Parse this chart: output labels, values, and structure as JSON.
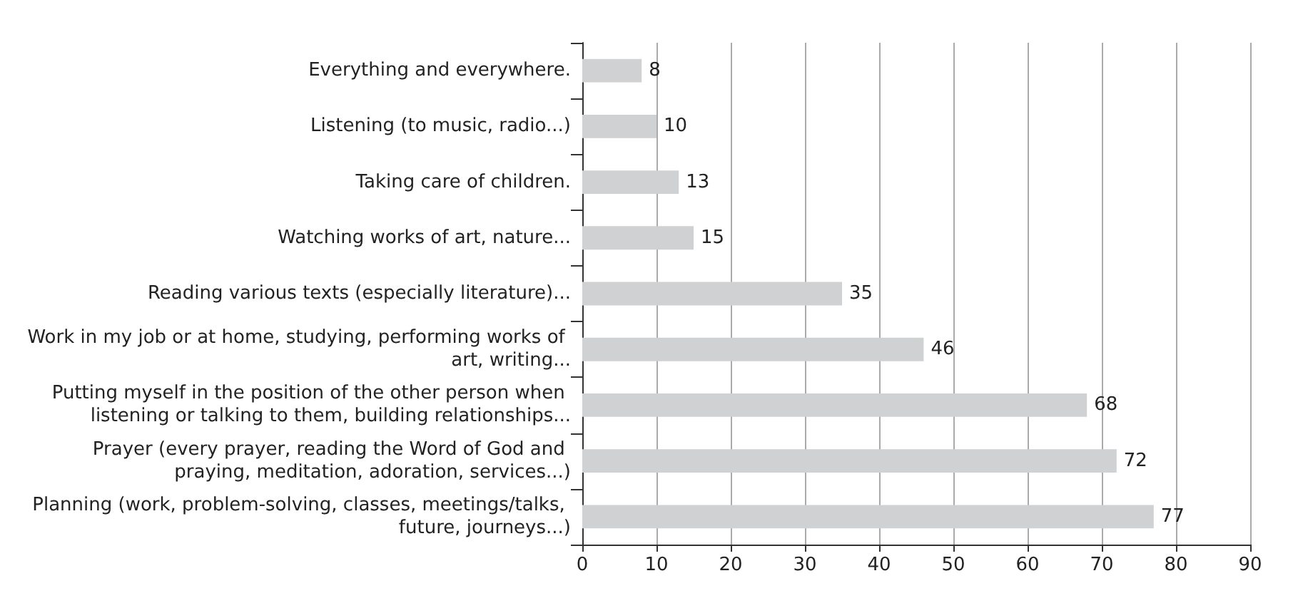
{
  "chart_data": {
    "type": "bar",
    "orientation": "horizontal",
    "categories": [
      "Everything and everywhere.",
      "Listening (to music, radio...)",
      "Taking care of children.",
      "Watching works of art, nature...",
      "Reading various texts (especially literature)...",
      "Work in my job or at home, studying, performing works of art, writing...",
      "Putting myself in the position of the other person when listening or talking to them, building relationships...",
      "Prayer (every prayer, reading the Word of God and praying, meditation, adoration, services...)",
      "Planning (work, problem-solving, classes, meetings/talks, future, journeys...)"
    ],
    "values": [
      8,
      10,
      13,
      15,
      35,
      46,
      68,
      72,
      77
    ],
    "color": "#d0d1d3",
    "xlim": [
      0,
      90
    ],
    "xticks": [
      0,
      10,
      20,
      30,
      40,
      50,
      60,
      70,
      80,
      90
    ],
    "grid": "x",
    "data_labels": true
  }
}
